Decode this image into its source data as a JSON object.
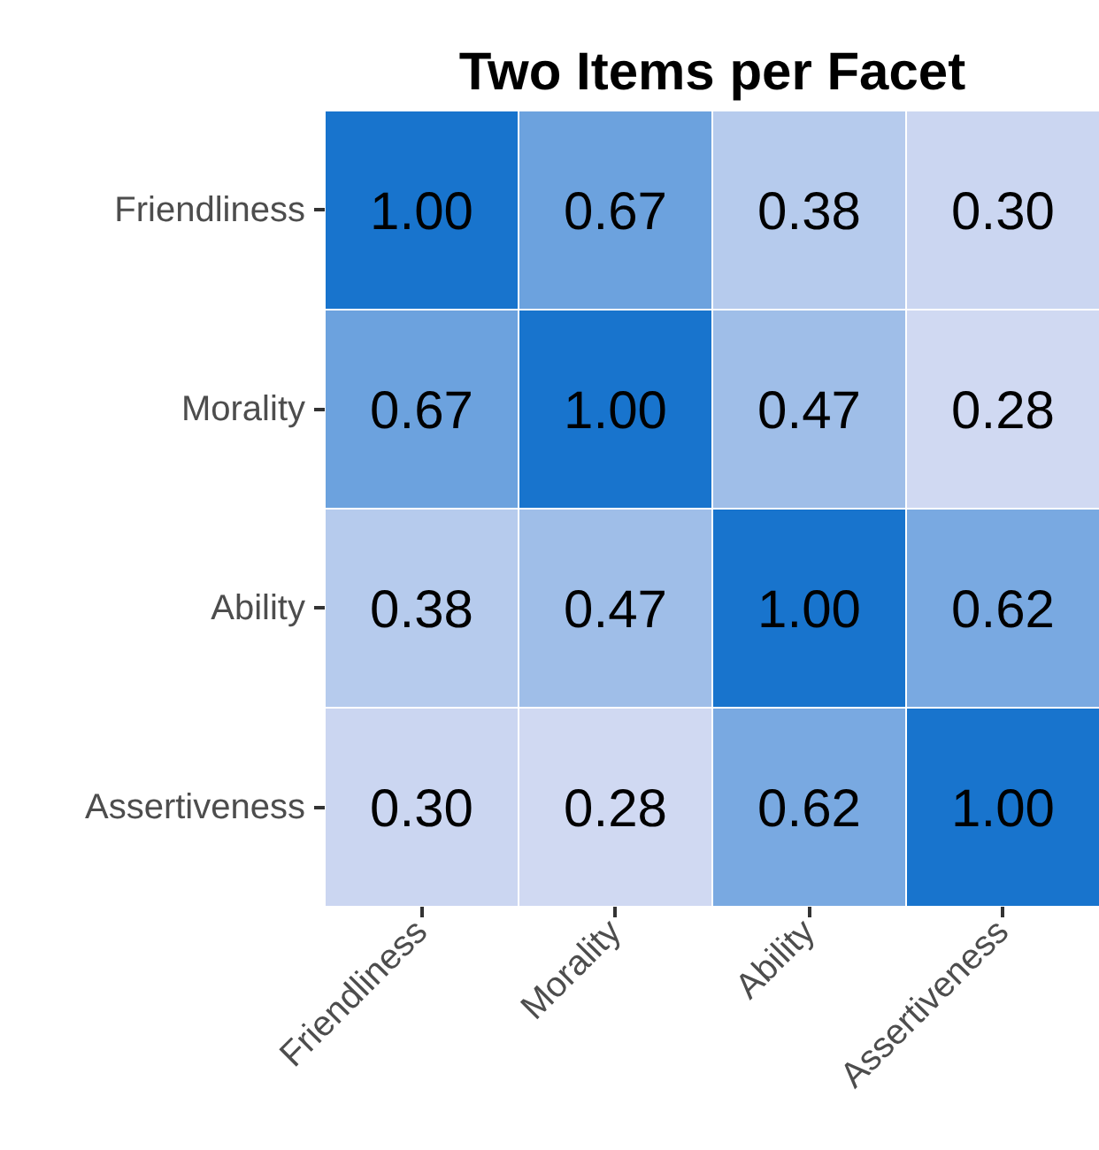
{
  "chart_data": {
    "type": "heatmap",
    "title": "Two Items per Facet",
    "categories": [
      "Friendliness",
      "Morality",
      "Ability",
      "Assertiveness"
    ],
    "y_categories": [
      "Friendliness",
      "Morality",
      "Ability",
      "Assertiveness"
    ],
    "cells": [
      [
        1.0,
        0.67,
        0.38,
        0.3
      ],
      [
        0.67,
        1.0,
        0.47,
        0.28
      ],
      [
        0.38,
        0.47,
        1.0,
        0.62
      ],
      [
        0.3,
        0.28,
        0.62,
        1.0
      ]
    ],
    "cell_labels": [
      [
        "1.00",
        "0.67",
        "0.38",
        "0.30"
      ],
      [
        "0.67",
        "1.00",
        "0.47",
        "0.28"
      ],
      [
        "0.38",
        "0.47",
        "1.00",
        "0.62"
      ],
      [
        "0.30",
        "0.28",
        "0.62",
        "1.00"
      ]
    ],
    "colors": [
      "#d0d9f2",
      "#1874cd"
    ]
  }
}
